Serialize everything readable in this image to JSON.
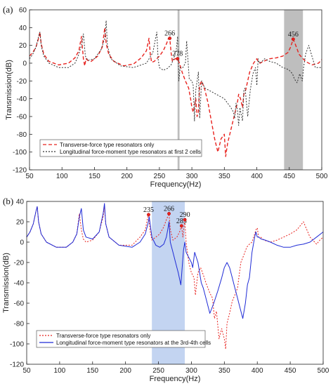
{
  "chart_data": [
    {
      "type": "line",
      "panel_label": "(a)",
      "xlabel": "Frequency(Hz)",
      "ylabel": "Transmission(dB)",
      "xlim": [
        50,
        500
      ],
      "ylim": [
        -120,
        60
      ],
      "xticks": [
        50,
        100,
        150,
        200,
        250,
        300,
        350,
        400,
        450,
        500
      ],
      "yticks": [
        -120,
        -100,
        -80,
        -60,
        -40,
        -20,
        0,
        20,
        40,
        60
      ],
      "legend_position": "lower-left",
      "shaded_bands": [
        {
          "from": 278,
          "to": 281,
          "color": "#b3b3b3"
        },
        {
          "from": 442,
          "to": 471,
          "color": "#b3b3b3"
        }
      ],
      "annotations": [
        {
          "label": "266",
          "x": 266,
          "y": 28
        },
        {
          "label": "278",
          "x": 278,
          "y": 5
        },
        {
          "label": "456",
          "x": 456,
          "y": 27
        }
      ],
      "series": [
        {
          "name": "Transverse-force type resonators only",
          "color": "#e8231f",
          "style": "dashed",
          "x": [
            50,
            55,
            60,
            64,
            66,
            68,
            72,
            80,
            95,
            110,
            120,
            126,
            130,
            133,
            135,
            137,
            140,
            145,
            155,
            162,
            166,
            168,
            172,
            180,
            195,
            210,
            222,
            230,
            234,
            236,
            238,
            242,
            250,
            256,
            261,
            264,
            266,
            268,
            270,
            274,
            277,
            278,
            279,
            281,
            285,
            290,
            295,
            298,
            300,
            302,
            304,
            306,
            308,
            310,
            312,
            315,
            320,
            325,
            330,
            335,
            340,
            345,
            350,
            352,
            355,
            360,
            365,
            370,
            372,
            375,
            378,
            380,
            383,
            386,
            389,
            392,
            395,
            398,
            400,
            402,
            405,
            410,
            420,
            430,
            440,
            448,
            452,
            456,
            460,
            465,
            475,
            485,
            495,
            500
          ],
          "y": [
            8,
            12,
            18,
            28,
            35,
            22,
            10,
            2,
            -2,
            0,
            6,
            14,
            30,
            5,
            -3,
            5,
            3,
            2,
            8,
            18,
            40,
            22,
            10,
            2,
            -3,
            -1,
            6,
            14,
            28,
            10,
            1,
            2,
            8,
            14,
            22,
            28,
            28,
            12,
            2,
            5,
            5,
            5,
            3,
            0,
            -10,
            -20,
            -28,
            -40,
            -50,
            -55,
            -48,
            -40,
            -60,
            -55,
            -25,
            -20,
            -30,
            -45,
            -65,
            -85,
            -100,
            -85,
            -80,
            -105,
            -90,
            -75,
            -60,
            -45,
            -35,
            -40,
            -50,
            -35,
            -30,
            -20,
            -10,
            -5,
            0,
            3,
            5,
            2,
            0,
            2,
            5,
            6,
            8,
            12,
            18,
            27,
            20,
            10,
            2,
            -2,
            0,
            4
          ]
        },
        {
          "name": "Longitudinal force-moment type resonators at first 2 cells",
          "color": "#333333",
          "style": "dotted",
          "x": [
            50,
            55,
            60,
            64,
            66,
            68,
            72,
            80,
            95,
            110,
            120,
            125,
            130,
            133,
            136,
            140,
            150,
            160,
            166,
            168,
            170,
            175,
            190,
            210,
            230,
            240,
            246,
            248,
            250,
            256,
            262,
            268,
            272,
            276,
            278,
            280,
            282,
            286,
            290,
            292,
            296,
            300,
            302,
            304,
            306,
            310,
            312,
            315,
            318,
            320,
            330,
            340,
            350,
            355,
            360,
            364,
            366,
            368,
            370,
            372,
            374,
            376,
            378,
            380,
            382,
            386,
            390,
            394,
            398,
            400,
            402,
            404,
            408,
            412,
            420,
            430,
            440,
            445,
            450,
            455,
            458,
            462,
            466,
            470,
            472,
            475,
            480,
            490,
            500
          ],
          "y": [
            5,
            10,
            18,
            30,
            35,
            20,
            8,
            0,
            -5,
            -5,
            0,
            8,
            20,
            33,
            8,
            3,
            5,
            15,
            28,
            48,
            20,
            5,
            -3,
            -5,
            0,
            12,
            35,
            5,
            -5,
            -8,
            -6,
            -2,
            5,
            15,
            30,
            -20,
            -5,
            -5,
            0,
            25,
            -18,
            -20,
            -25,
            -65,
            -30,
            -10,
            -62,
            -20,
            -25,
            -28,
            -32,
            -36,
            -40,
            -45,
            -50,
            -55,
            -62,
            -45,
            -52,
            -70,
            -50,
            -58,
            -65,
            -30,
            -28,
            -60,
            -30,
            -12,
            -5,
            -25,
            5,
            0,
            2,
            5,
            2,
            0,
            -5,
            -6,
            -8,
            -12,
            -18,
            -22,
            -12,
            -20,
            -5,
            10,
            20,
            -5,
            -5
          ]
        }
      ]
    },
    {
      "type": "line",
      "panel_label": "(b)",
      "xlabel": "Frequency(Hz)",
      "ylabel": "Transmission(dB)",
      "xlim": [
        50,
        500
      ],
      "ylim": [
        -120,
        40
      ],
      "xticks": [
        50,
        100,
        150,
        200,
        250,
        300,
        350,
        400,
        450,
        500
      ],
      "yticks": [
        -120,
        -100,
        -80,
        -60,
        -40,
        -20,
        0,
        20,
        40
      ],
      "legend_position": "lower-left",
      "shaded_bands": [
        {
          "from": 240,
          "to": 290,
          "color": "#b8cdee"
        }
      ],
      "annotations": [
        {
          "label": "235",
          "x": 235,
          "y": 27
        },
        {
          "label": "266",
          "x": 266,
          "y": 28
        },
        {
          "label": "285",
          "x": 285,
          "y": 16
        },
        {
          "label": "290",
          "x": 290,
          "y": 22
        }
      ],
      "series": [
        {
          "name": "Transverse-force type resonators only",
          "color": "#e8231f",
          "style": "dotted",
          "x": [
            50,
            55,
            60,
            64,
            66,
            68,
            72,
            80,
            95,
            110,
            120,
            126,
            130,
            133,
            136,
            140,
            150,
            160,
            166,
            168,
            170,
            175,
            190,
            210,
            222,
            230,
            233,
            235,
            237,
            240,
            246,
            252,
            258,
            262,
            266,
            268,
            272,
            278,
            282,
            285,
            287,
            290,
            292,
            296,
            300,
            304,
            306,
            310,
            314,
            318,
            322,
            328,
            332,
            335,
            338,
            342,
            346,
            350,
            352,
            354,
            358,
            362,
            366,
            370,
            375,
            380,
            384,
            388,
            392,
            396,
            398,
            400,
            402,
            405,
            410,
            420,
            430,
            440,
            450,
            460,
            470,
            480,
            490,
            495,
            500
          ],
          "y": [
            5,
            10,
            18,
            30,
            35,
            20,
            8,
            0,
            -5,
            -5,
            0,
            8,
            28,
            12,
            3,
            0,
            2,
            10,
            25,
            35,
            18,
            5,
            -3,
            -3,
            5,
            12,
            22,
            27,
            12,
            2,
            5,
            8,
            15,
            22,
            28,
            12,
            2,
            5,
            10,
            16,
            5,
            22,
            0,
            -20,
            -30,
            -35,
            -52,
            -30,
            -25,
            -32,
            -40,
            -50,
            -55,
            -75,
            -68,
            -95,
            -85,
            -95,
            -105,
            -80,
            -70,
            -58,
            -52,
            -45,
            -20,
            -12,
            -5,
            -2,
            0,
            8,
            12,
            14,
            5,
            5,
            2,
            0,
            2,
            5,
            8,
            12,
            20,
            5,
            -2,
            2,
            5
          ]
        },
        {
          "name": "Longitudinal force-moment type resonators at the 3rd-4th cells",
          "color": "#1f2bd6",
          "style": "solid",
          "x": [
            50,
            55,
            60,
            64,
            66,
            68,
            72,
            80,
            95,
            110,
            120,
            126,
            130,
            133,
            136,
            140,
            150,
            160,
            166,
            168,
            170,
            175,
            190,
            210,
            222,
            230,
            234,
            236,
            240,
            246,
            252,
            258,
            262,
            264,
            266,
            268,
            272,
            276,
            280,
            284,
            288,
            290,
            292,
            296,
            300,
            302,
            305,
            310,
            315,
            318,
            322,
            328,
            334,
            340,
            346,
            350,
            354,
            358,
            362,
            366,
            370,
            374,
            378,
            382,
            385,
            388,
            392,
            396,
            398,
            400,
            402,
            406,
            412,
            420,
            430,
            440,
            450,
            460,
            470,
            480,
            490,
            500
          ],
          "y": [
            5,
            10,
            18,
            30,
            35,
            20,
            8,
            0,
            -5,
            -5,
            0,
            8,
            25,
            33,
            12,
            5,
            3,
            10,
            28,
            38,
            18,
            5,
            -3,
            -5,
            0,
            8,
            18,
            25,
            5,
            -3,
            -5,
            -2,
            5,
            12,
            20,
            0,
            -10,
            -20,
            -30,
            -42,
            -8,
            0,
            -10,
            -15,
            -20,
            -25,
            -10,
            -20,
            -40,
            -45,
            -55,
            -70,
            -60,
            -48,
            -35,
            -25,
            -20,
            -25,
            -35,
            -45,
            -55,
            -65,
            -75,
            -60,
            -42,
            -35,
            -10,
            5,
            10,
            5,
            5,
            3,
            2,
            0,
            -3,
            -5,
            -5,
            -3,
            -2,
            0,
            5,
            10
          ]
        }
      ]
    }
  ]
}
